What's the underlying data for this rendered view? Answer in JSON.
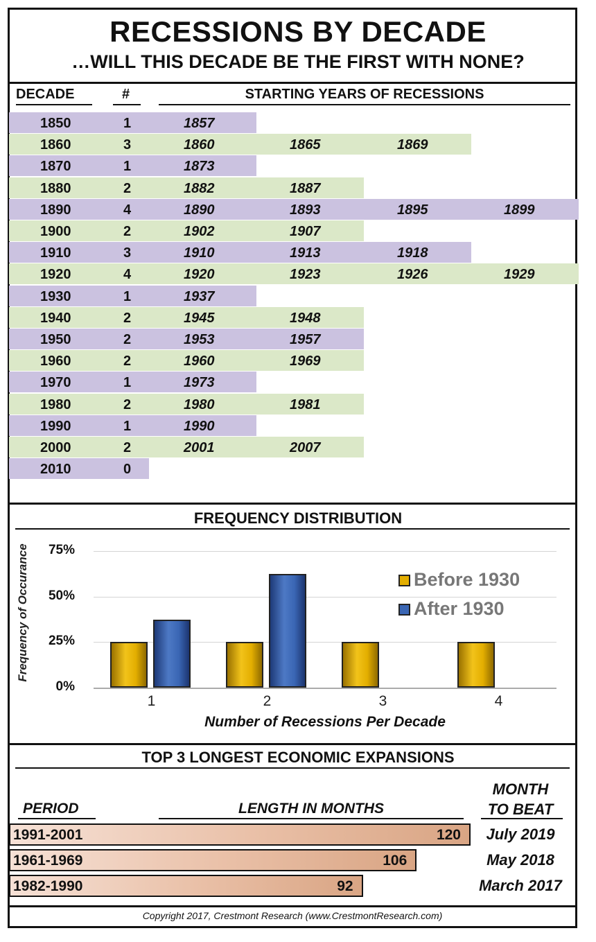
{
  "header": {
    "title": "RECESSIONS BY DECADE",
    "subtitle": "…WILL THIS DECADE BE THE FIRST WITH NONE?"
  },
  "table": {
    "col_decade": "DECADE",
    "col_count": "#",
    "col_years": "STARTING YEARS OF RECESSIONS",
    "colors": {
      "purple": "#cbc2e0",
      "green": "#dbe8c8"
    },
    "rows": [
      {
        "decade": "1850",
        "count": "1",
        "years": [
          "1857"
        ]
      },
      {
        "decade": "1860",
        "count": "3",
        "years": [
          "1860",
          "1865",
          "1869"
        ]
      },
      {
        "decade": "1870",
        "count": "1",
        "years": [
          "1873"
        ]
      },
      {
        "decade": "1880",
        "count": "2",
        "years": [
          "1882",
          "1887"
        ]
      },
      {
        "decade": "1890",
        "count": "4",
        "years": [
          "1890",
          "1893",
          "1895",
          "1899"
        ]
      },
      {
        "decade": "1900",
        "count": "2",
        "years": [
          "1902",
          "1907"
        ]
      },
      {
        "decade": "1910",
        "count": "3",
        "years": [
          "1910",
          "1913",
          "1918"
        ]
      },
      {
        "decade": "1920",
        "count": "4",
        "years": [
          "1920",
          "1923",
          "1926",
          "1929"
        ]
      },
      {
        "decade": "1930",
        "count": "1",
        "years": [
          "1937"
        ]
      },
      {
        "decade": "1940",
        "count": "2",
        "years": [
          "1945",
          "1948"
        ]
      },
      {
        "decade": "1950",
        "count": "2",
        "years": [
          "1953",
          "1957"
        ]
      },
      {
        "decade": "1960",
        "count": "2",
        "years": [
          "1960",
          "1969"
        ]
      },
      {
        "decade": "1970",
        "count": "1",
        "years": [
          "1973"
        ]
      },
      {
        "decade": "1980",
        "count": "2",
        "years": [
          "1980",
          "1981"
        ]
      },
      {
        "decade": "1990",
        "count": "1",
        "years": [
          "1990"
        ]
      },
      {
        "decade": "2000",
        "count": "2",
        "years": [
          "2001",
          "2007"
        ]
      },
      {
        "decade": "2010",
        "count": "0",
        "years": []
      }
    ]
  },
  "chart_data": [
    {
      "type": "bar",
      "title": "FREQUENCY DISTRIBUTION",
      "xlabel": "Number of Recessions Per Decade",
      "ylabel": "Frequency of Occurance",
      "categories": [
        "1",
        "2",
        "3",
        "4"
      ],
      "yticks": [
        "0%",
        "25%",
        "50%",
        "75%"
      ],
      "ylim": [
        0,
        75
      ],
      "grid": true,
      "legend": "right",
      "series": [
        {
          "name": "Before 1930",
          "values": [
            25,
            25,
            25,
            25
          ],
          "color": "#e3ae00"
        },
        {
          "name": "After 1930",
          "values": [
            37.5,
            62.5,
            null,
            null
          ],
          "color": "#3a66b4"
        }
      ]
    },
    {
      "type": "bar",
      "orientation": "horizontal",
      "title": "TOP 3 LONGEST ECONOMIC EXPANSIONS",
      "col_period": "PERIOD",
      "col_length": "LENGTH IN MONTHS",
      "col_month_line1": "MONTH",
      "col_month_line2": "TO BEAT",
      "xlim": [
        0,
        120
      ],
      "rows": [
        {
          "period": "1991-2001",
          "months": 120,
          "label": "120",
          "month_to_beat": "July 2019"
        },
        {
          "period": "1961-1969",
          "months": 106,
          "label": "106",
          "month_to_beat": "May 2018"
        },
        {
          "period": "1982-1990",
          "months": 92,
          "label": "92",
          "month_to_beat": "March 2017"
        }
      ]
    }
  ],
  "footer": {
    "copyright": "Copyright 2017, Crestmont Research (www.CrestmontResearch.com)"
  }
}
